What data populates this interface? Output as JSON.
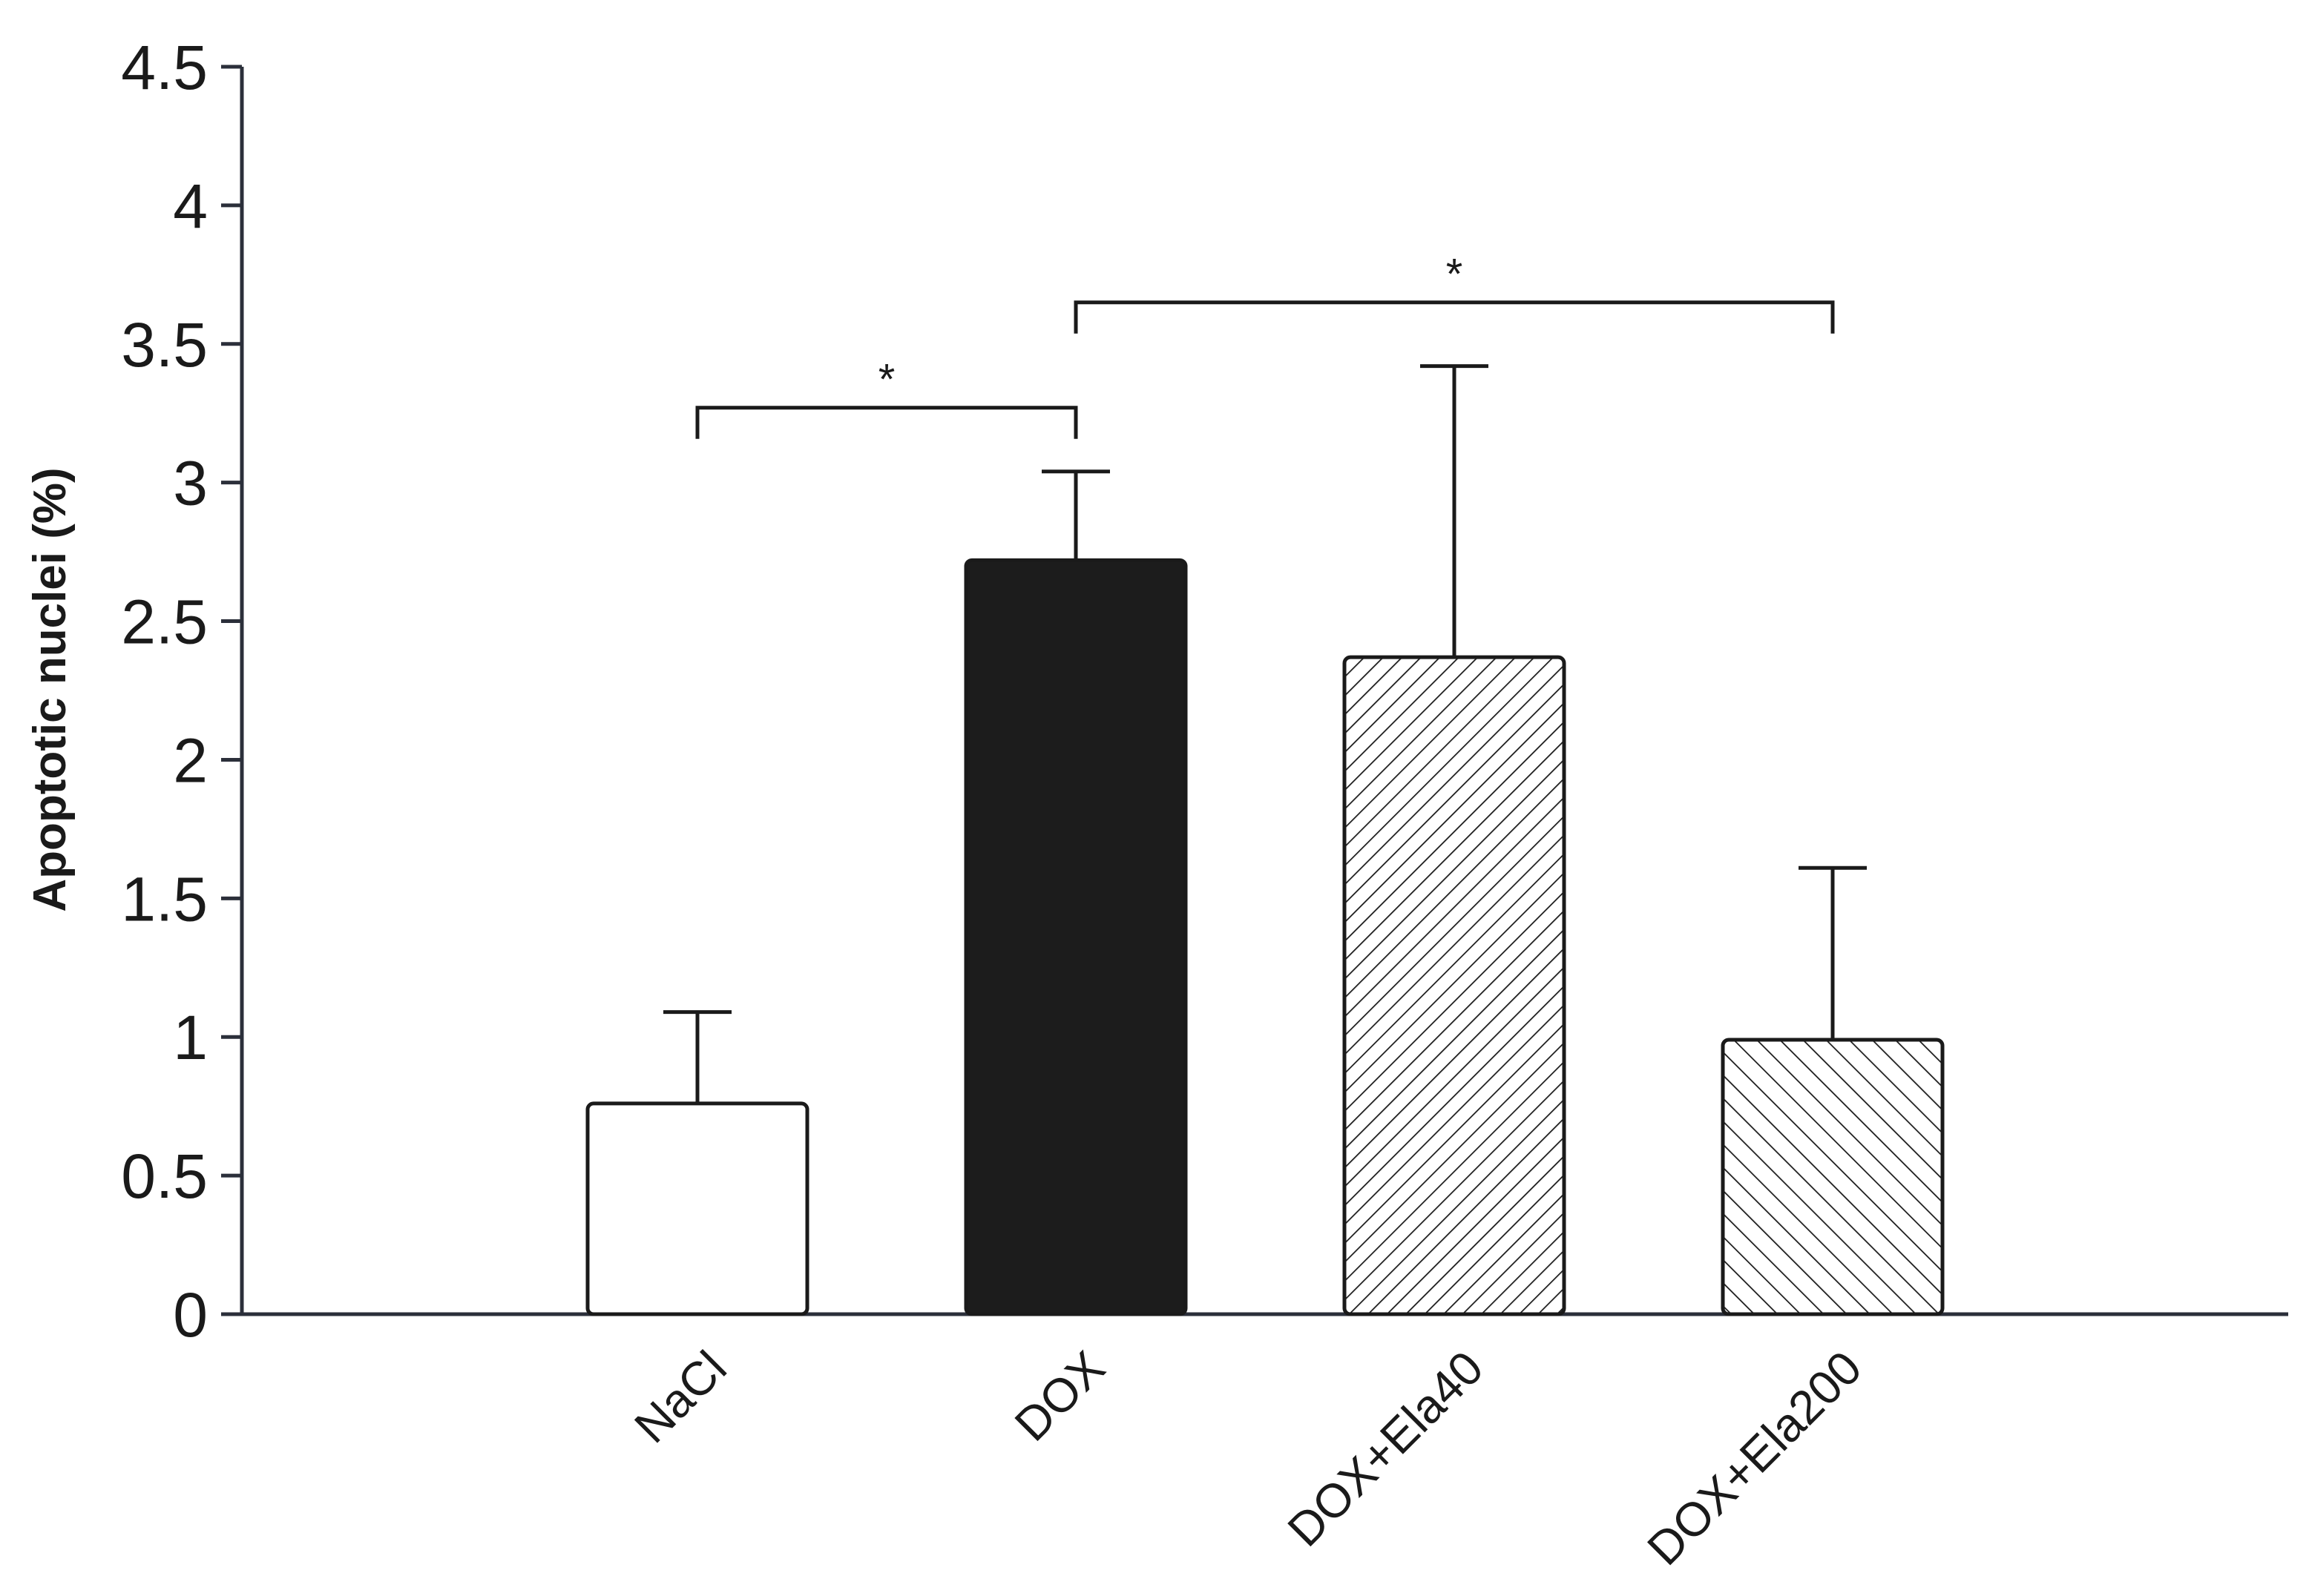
{
  "chart_data": {
    "type": "bar",
    "title": "",
    "xlabel": "",
    "ylabel": "Apoptotic nuclei (%)",
    "ylim": [
      0,
      4.5
    ],
    "yticks": [
      "0",
      "0.5",
      "1",
      "1.5",
      "2",
      "2.5",
      "3",
      "3.5",
      "4",
      "4.5"
    ],
    "categories": [
      "NaCl",
      "DOX",
      "DOX+Ela40",
      "DOX+Ela200"
    ],
    "values": [
      0.76,
      2.72,
      2.37,
      0.99
    ],
    "errors": [
      0.33,
      0.32,
      1.05,
      0.62
    ],
    "fills": [
      "white",
      "black",
      "hatch-dense",
      "hatch-sparse"
    ],
    "significance": [
      {
        "from": 0,
        "to": 1,
        "label": "*",
        "y": 3.27
      },
      {
        "from": 1,
        "to": 3,
        "label": "*",
        "y": 3.65
      }
    ],
    "grid": false,
    "legend": "none"
  },
  "colors": {
    "axis": "#2b2f3a",
    "bar_edge": "#1a1a1a",
    "dark_bar": "#1c1c1c"
  }
}
